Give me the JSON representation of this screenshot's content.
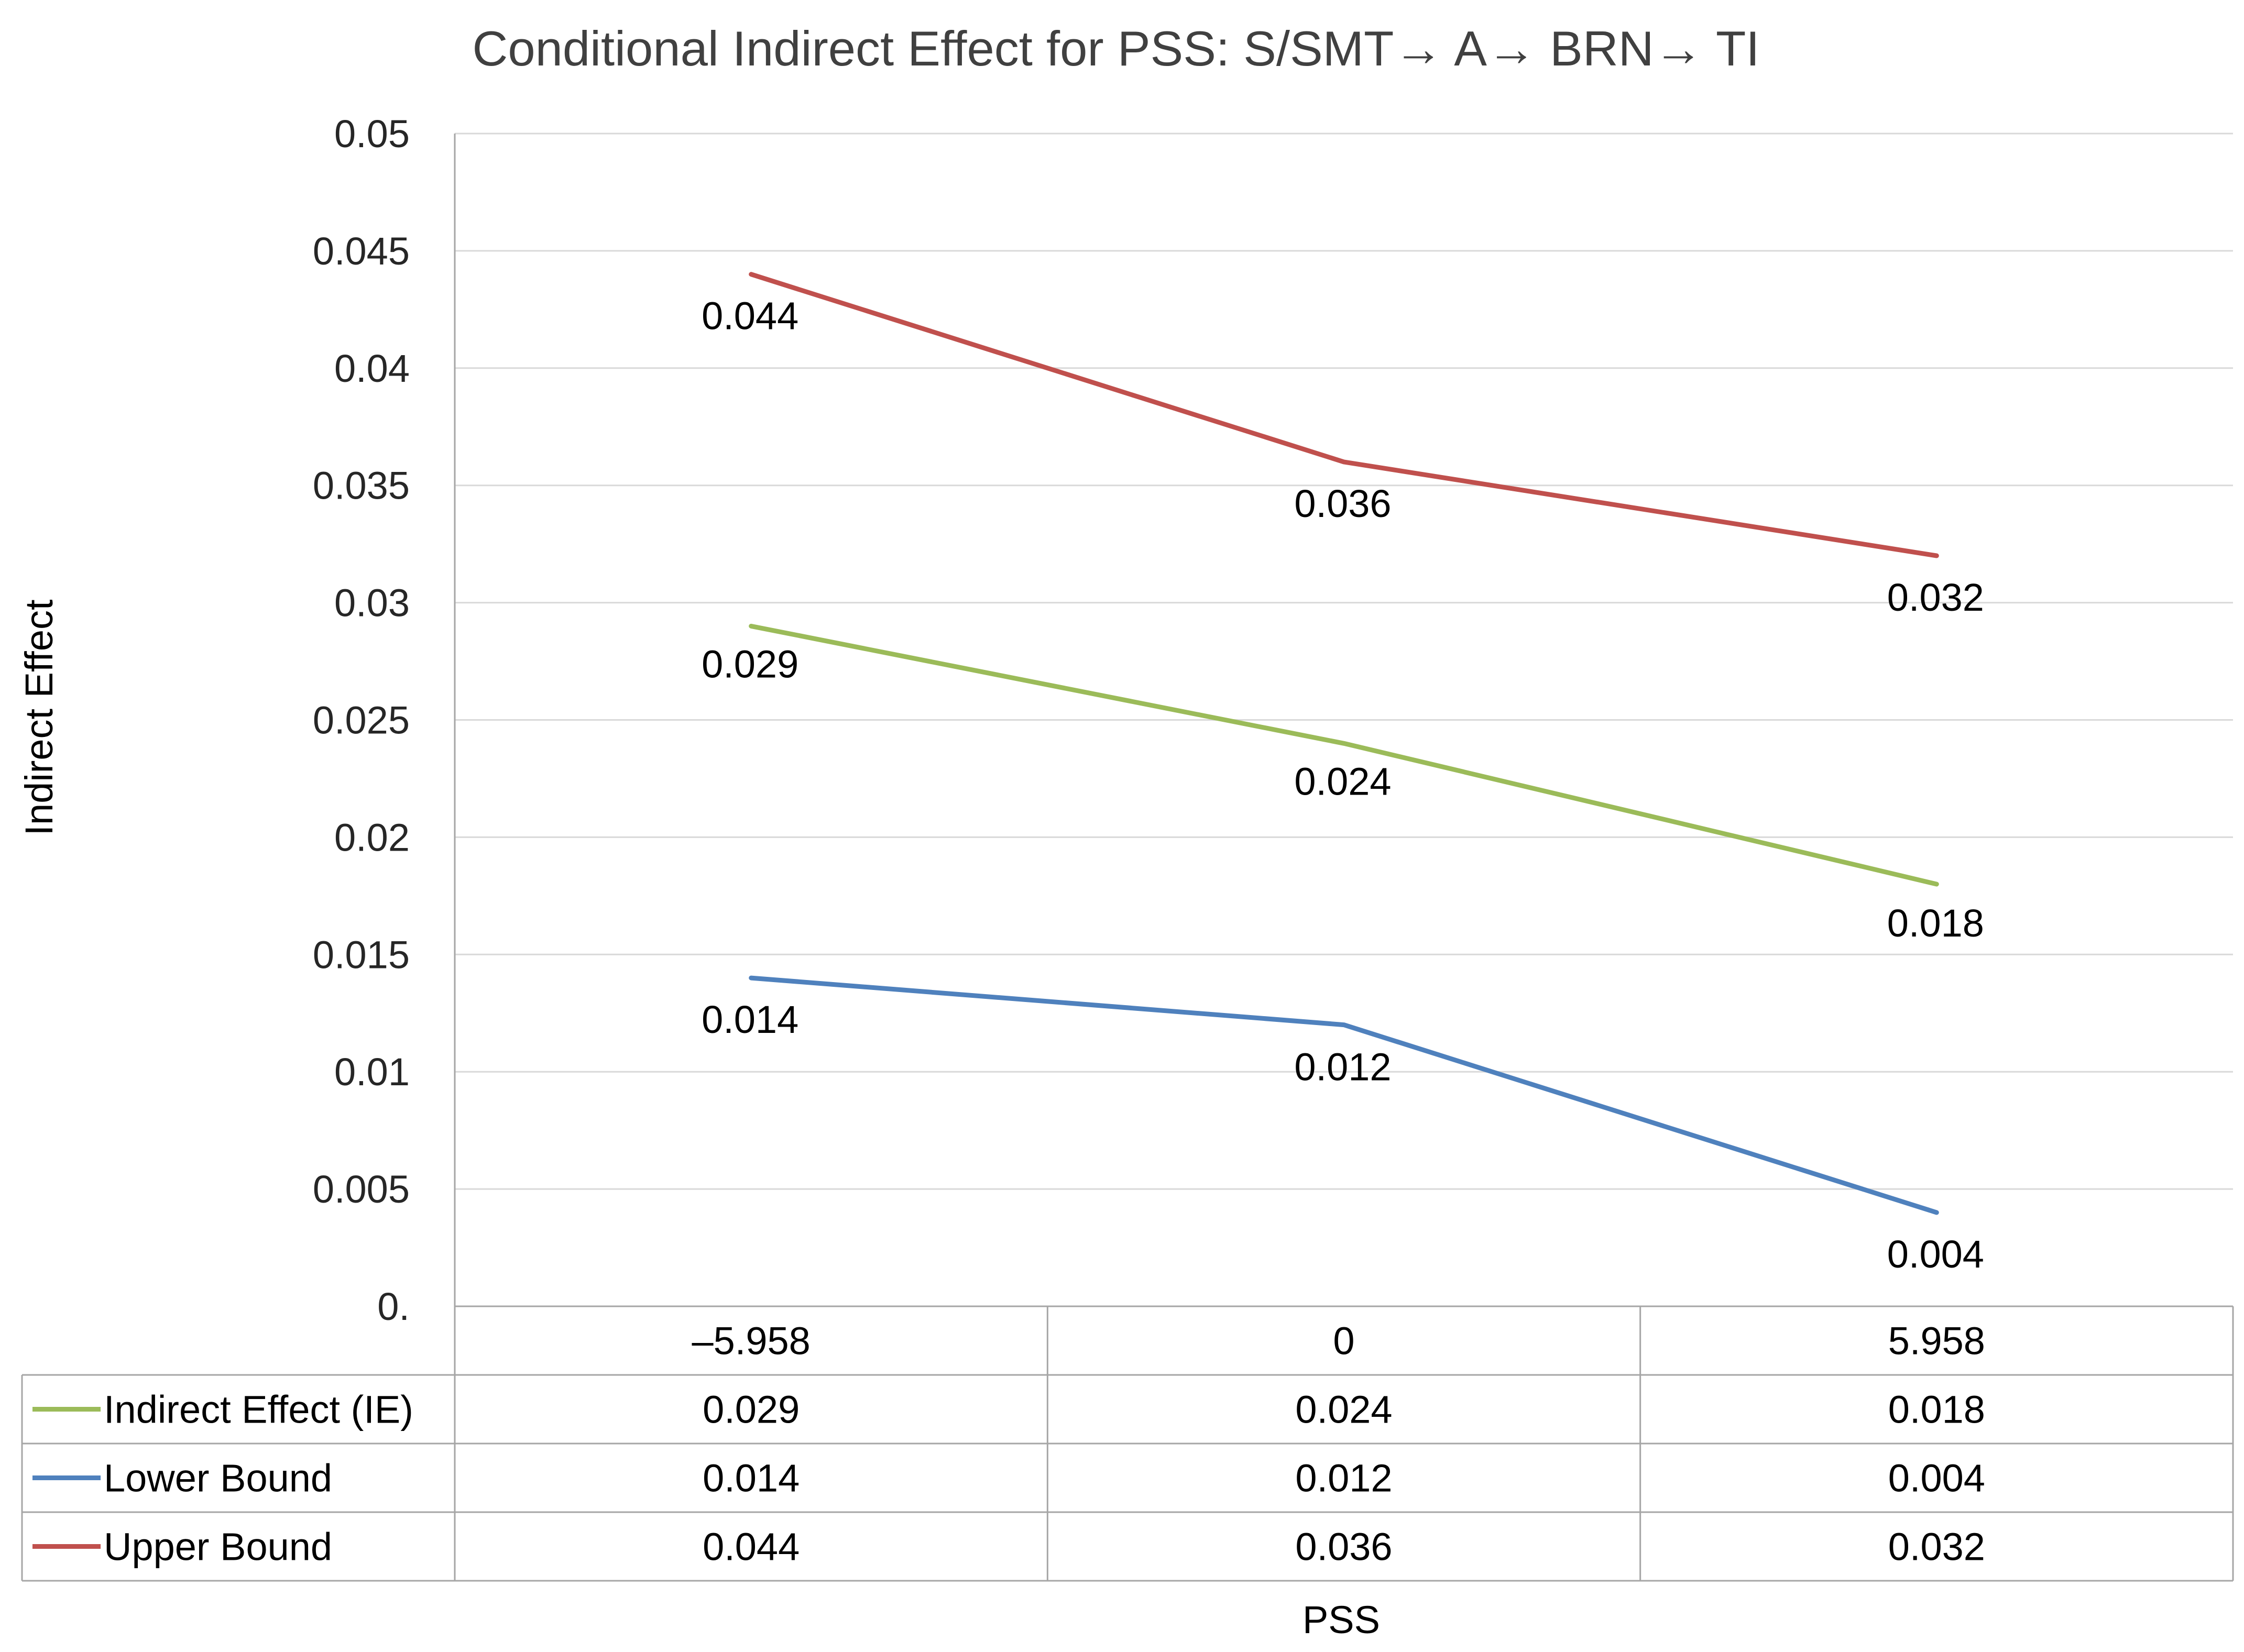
{
  "chart_data": {
    "type": "line",
    "title": "Conditional Indirect Effect for PSS: S/SMT→ A→ BRN→ TI",
    "xlabel": "PSS",
    "ylabel": "Indirect Effect",
    "categories": [
      "–5.958",
      "0",
      "5.958"
    ],
    "ylim": [
      0,
      0.05
    ],
    "yticks": [
      0,
      0.005,
      0.01,
      0.015,
      0.02,
      0.025,
      0.03,
      0.035,
      0.04,
      0.045,
      0.05
    ],
    "ytick_labels": [
      "0.",
      "0.005",
      "0.01",
      "0.015",
      "0.02",
      "0.025",
      "0.03",
      "0.035",
      "0.04",
      "0.045",
      "0.05"
    ],
    "grid": true,
    "legend": "data-table",
    "series": [
      {
        "name": "Indirect Effect (IE)",
        "color": "#9BBB59",
        "values": [
          0.029,
          0.024,
          0.018
        ],
        "labels": [
          "0.029",
          "0.024",
          "0.018"
        ]
      },
      {
        "name": "Lower Bound",
        "color": "#4F81BD",
        "values": [
          0.014,
          0.012,
          0.004
        ],
        "labels": [
          "0.014",
          "0.012",
          "0.004"
        ]
      },
      {
        "name": "Upper Bound",
        "color": "#C0504D",
        "values": [
          0.044,
          0.036,
          0.032
        ],
        "labels": [
          "0.044",
          "0.036",
          "0.032"
        ]
      }
    ]
  }
}
